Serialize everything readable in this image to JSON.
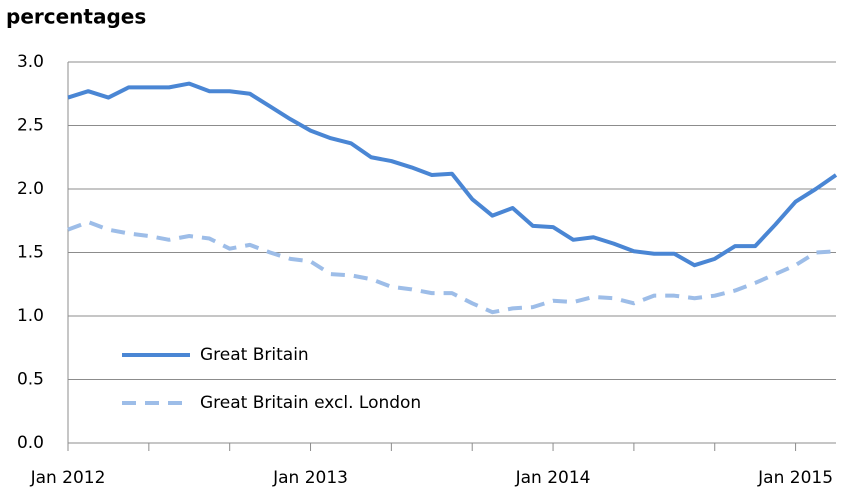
{
  "chart_data": {
    "type": "line",
    "y_label": "percentages",
    "categories": [
      "Jan 2012",
      null,
      null,
      null,
      null,
      null,
      null,
      null,
      null,
      null,
      null,
      null,
      "Jan 2013",
      null,
      null,
      null,
      null,
      null,
      null,
      null,
      null,
      null,
      null,
      null,
      "Jan 2014",
      null,
      null,
      null,
      null,
      null,
      null,
      null,
      null,
      null,
      null,
      null,
      "Jan 2015",
      null,
      null
    ],
    "series": [
      {
        "name": "Great Britain",
        "color": "#4a86d4",
        "dashed": false,
        "values": [
          2.72,
          2.77,
          2.72,
          2.8,
          2.8,
          2.8,
          2.83,
          2.77,
          2.77,
          2.75,
          2.65,
          2.55,
          2.46,
          2.4,
          2.36,
          2.25,
          2.22,
          2.17,
          2.11,
          2.12,
          1.92,
          1.79,
          1.85,
          1.71,
          1.7,
          1.6,
          1.62,
          1.57,
          1.51,
          1.49,
          1.49,
          1.4,
          1.45,
          1.55,
          1.55,
          1.72,
          1.9,
          2.0,
          2.11
        ]
      },
      {
        "name": "Great Britain excl. London",
        "color": "#9dbde8",
        "dashed": true,
        "values": [
          1.68,
          1.74,
          1.68,
          1.65,
          1.63,
          1.6,
          1.63,
          1.61,
          1.53,
          1.56,
          1.5,
          1.45,
          1.43,
          1.33,
          1.32,
          1.29,
          1.23,
          1.21,
          1.18,
          1.18,
          1.1,
          1.03,
          1.06,
          1.07,
          1.12,
          1.11,
          1.15,
          1.14,
          1.1,
          1.16,
          1.16,
          1.14,
          1.16,
          1.2,
          1.26,
          1.33,
          1.4,
          1.5,
          1.51
        ]
      }
    ],
    "ylim": [
      0,
      3
    ],
    "yticks": [
      {
        "value": 0,
        "label": "0.0"
      },
      0.5,
      {
        "value": 1,
        "label": "1.0"
      },
      1.5,
      {
        "value": 2,
        "label": "2.0"
      },
      2.5,
      {
        "value": 3,
        "label": "3.0"
      }
    ],
    "grid": true,
    "legend": "lower-left"
  }
}
